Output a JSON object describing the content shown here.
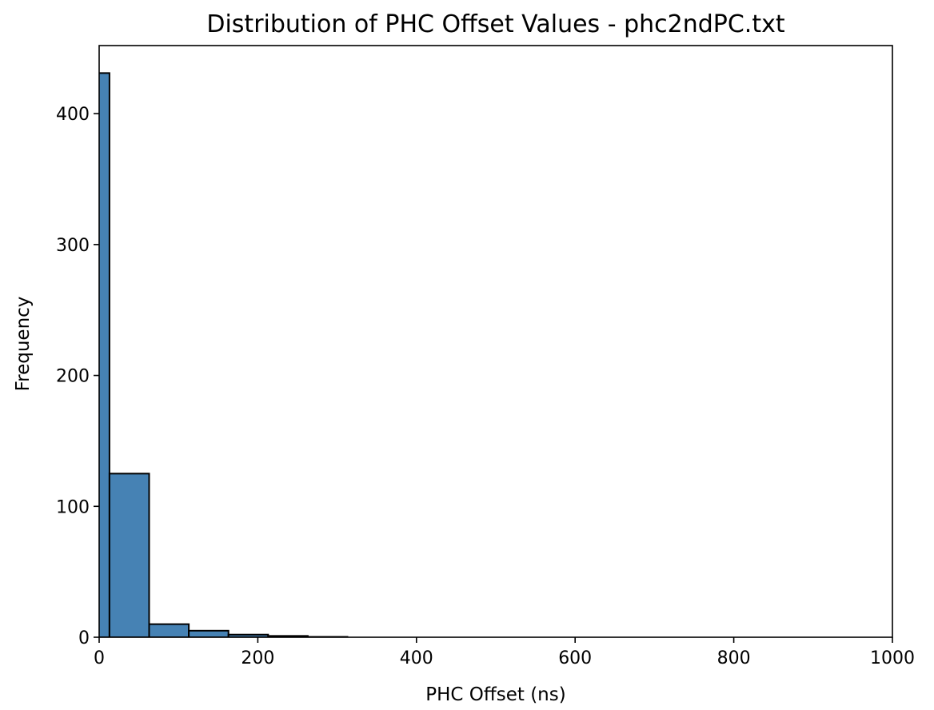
{
  "chart_data": {
    "type": "bar",
    "title": "Distribution of PHC Offset Values - phc2ndPC.txt",
    "xlabel": "PHC Offset (ns)",
    "ylabel": "Frequency",
    "xlim": [
      0,
      1000
    ],
    "ylim": [
      0,
      452
    ],
    "xticks": [
      0,
      200,
      400,
      600,
      800,
      1000
    ],
    "yticks": [
      0,
      100,
      200,
      300,
      400
    ],
    "grid": false,
    "bar_color": "#4682b4",
    "edge_color": "#000000",
    "bins": [
      {
        "x0": -37,
        "x1": 13,
        "value": 431
      },
      {
        "x0": 13,
        "x1": 63,
        "value": 125
      },
      {
        "x0": 63,
        "x1": 113,
        "value": 10
      },
      {
        "x0": 113,
        "x1": 163,
        "value": 5
      },
      {
        "x0": 163,
        "x1": 213,
        "value": 2
      },
      {
        "x0": 213,
        "x1": 263,
        "value": 1
      },
      {
        "x0": 263,
        "x1": 313,
        "value": 0.3
      },
      {
        "x0": 313,
        "x1": 363,
        "value": 0
      },
      {
        "x0": 363,
        "x1": 413,
        "value": 0
      },
      {
        "x0": 413,
        "x1": 463,
        "value": 0
      },
      {
        "x0": 463,
        "x1": 513,
        "value": 0
      },
      {
        "x0": 513,
        "x1": 563,
        "value": 0
      },
      {
        "x0": 563,
        "x1": 613,
        "value": 0
      },
      {
        "x0": 613,
        "x1": 663,
        "value": 0
      },
      {
        "x0": 663,
        "x1": 713,
        "value": 0
      },
      {
        "x0": 713,
        "x1": 763,
        "value": 0
      },
      {
        "x0": 763,
        "x1": 813,
        "value": 0
      },
      {
        "x0": 813,
        "x1": 863,
        "value": 0
      },
      {
        "x0": 863,
        "x1": 913,
        "value": 0
      },
      {
        "x0": 913,
        "x1": 963,
        "value": 0
      },
      {
        "x0": 963,
        "x1": 1013,
        "value": 0
      }
    ]
  }
}
